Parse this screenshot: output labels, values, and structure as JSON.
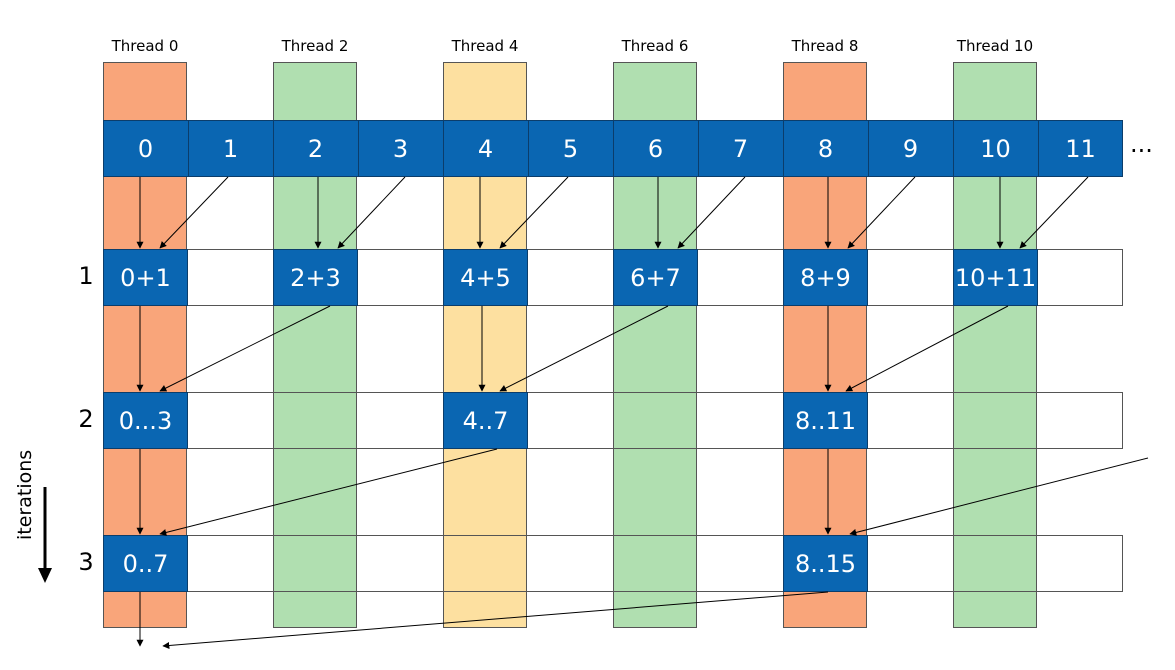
{
  "threads": [
    {
      "label": "Thread 0",
      "color": "#f9a57a"
    },
    {
      "label": "Thread 2",
      "color": "#b0dfb0"
    },
    {
      "label": "Thread 4",
      "color": "#fde0a0"
    },
    {
      "label": "Thread 6",
      "color": "#b0dfb0"
    },
    {
      "label": "Thread 8",
      "color": "#f9a57a"
    },
    {
      "label": "Thread 10",
      "color": "#b0dfb0"
    }
  ],
  "input_cells": [
    "0",
    "1",
    "2",
    "3",
    "4",
    "5",
    "6",
    "7",
    "8",
    "9",
    "10",
    "11"
  ],
  "ellipsis": "...",
  "iterations": [
    {
      "label": "1",
      "cells": [
        "0+1",
        "2+3",
        "4+5",
        "6+7",
        "8+9",
        "10+11"
      ]
    },
    {
      "label": "2",
      "cells": [
        "0...3",
        "4..7",
        "8..11"
      ]
    },
    {
      "label": "3",
      "cells": [
        "0..7",
        "8..15"
      ]
    }
  ],
  "axis_label": "iterations",
  "colors": {
    "cell_blue": "#0a66b2",
    "orange": "#f9a57a",
    "green": "#b0dfb0",
    "yellow": "#fde0a0"
  }
}
